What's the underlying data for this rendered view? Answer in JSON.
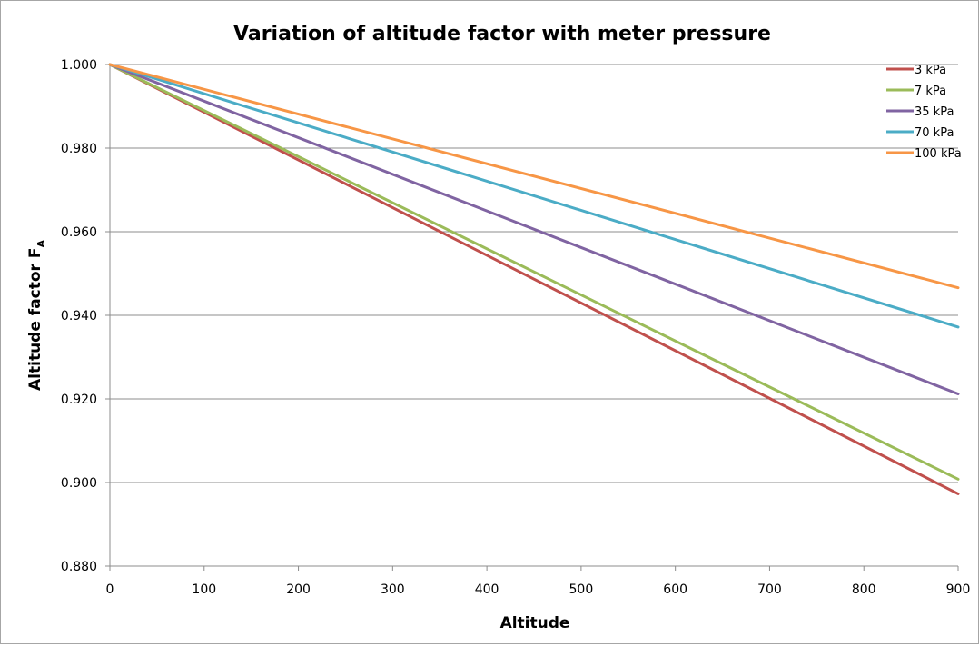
{
  "chart_data": {
    "type": "line",
    "title": "Variation of altitude factor with meter pressure",
    "xlabel": "Altitude",
    "ylabel": "Altitude factor F",
    "ylabel_subscript": "A",
    "xlim": [
      0,
      900
    ],
    "ylim": [
      0.88,
      1.0
    ],
    "x_ticks": [
      "0",
      "100",
      "200",
      "300",
      "400",
      "500",
      "600",
      "700",
      "800",
      "900"
    ],
    "y_ticks": [
      "1.000",
      "0.980",
      "0.960",
      "0.940",
      "0.920",
      "0.900",
      "0.880"
    ],
    "grid": "horizontal",
    "legend_position": "top-right",
    "x": [
      0,
      900
    ],
    "series": [
      {
        "name": "3 kPa",
        "color": "#c0504d",
        "values": [
          1.0,
          0.8973
        ]
      },
      {
        "name": "7 kPa",
        "color": "#9bbb59",
        "values": [
          1.0,
          0.9008
        ]
      },
      {
        "name": "35 kPa",
        "color": "#8064a2",
        "values": [
          1.0,
          0.9212
        ]
      },
      {
        "name": "70 kPa",
        "color": "#4bacc6",
        "values": [
          1.0,
          0.9372
        ]
      },
      {
        "name": "100 kPa",
        "color": "#f79646",
        "values": [
          1.0,
          0.9466
        ]
      }
    ]
  }
}
